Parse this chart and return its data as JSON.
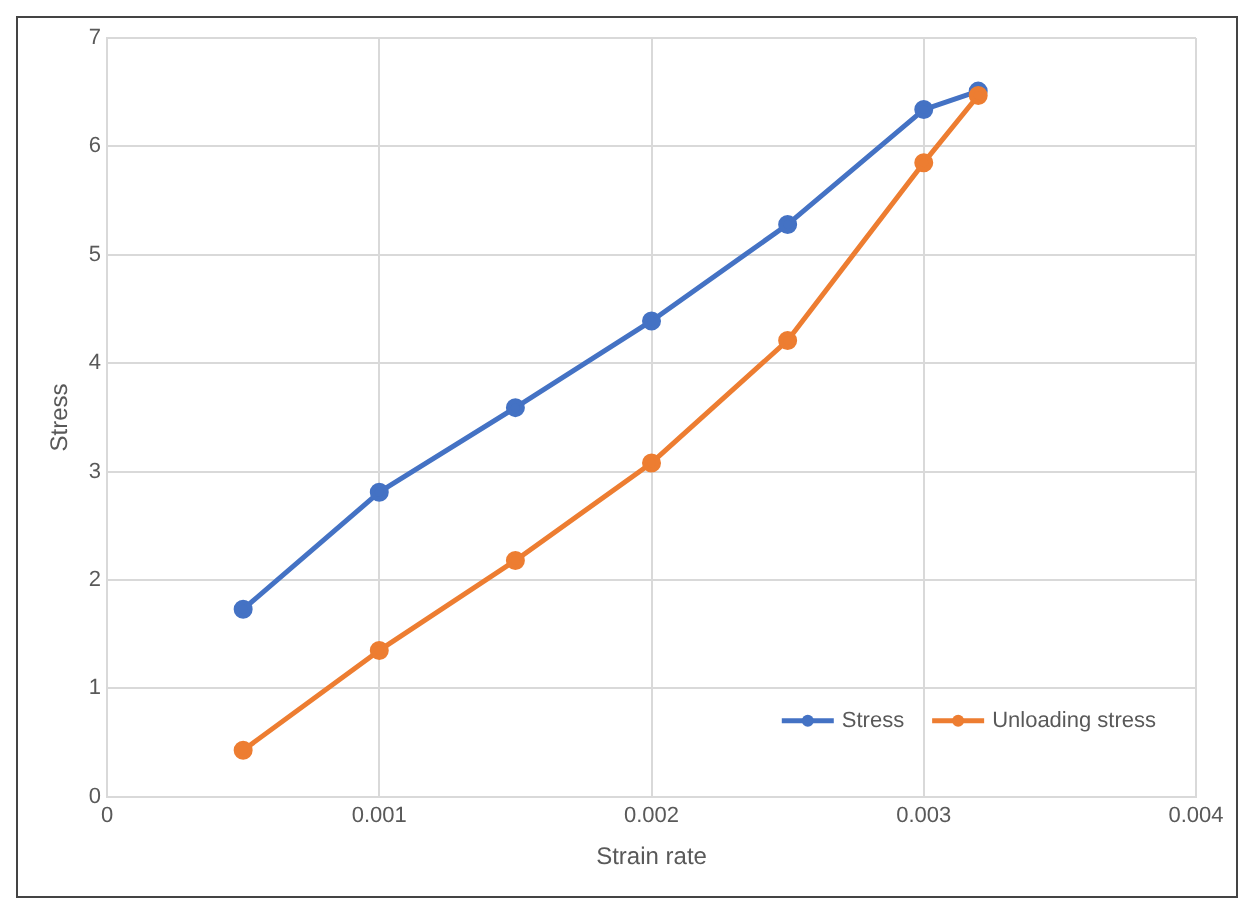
{
  "chart_data": {
    "type": "line",
    "xlabel": "Strain rate",
    "ylabel": "Stress",
    "x": [
      0.0005,
      0.001,
      0.0015,
      0.002,
      0.0025,
      0.003,
      0.0032
    ],
    "series": [
      {
        "name": "Stress",
        "color": "#4472c4",
        "values": [
          1.73,
          2.81,
          3.59,
          4.39,
          5.28,
          6.34,
          6.51
        ]
      },
      {
        "name": "Unloading stress",
        "color": "#ed7d31",
        "values": [
          0.43,
          1.35,
          2.18,
          3.08,
          4.21,
          5.85,
          6.47
        ]
      }
    ],
    "xlim": [
      0,
      0.004
    ],
    "xticks": [
      0,
      0.001,
      0.002,
      0.003,
      0.004
    ],
    "ylim": [
      0,
      7
    ],
    "yticks": [
      0,
      1,
      2,
      3,
      4,
      5,
      6,
      7
    ],
    "grid": true,
    "legend": "bottom right",
    "marker": "circle",
    "line_style": "solid"
  }
}
